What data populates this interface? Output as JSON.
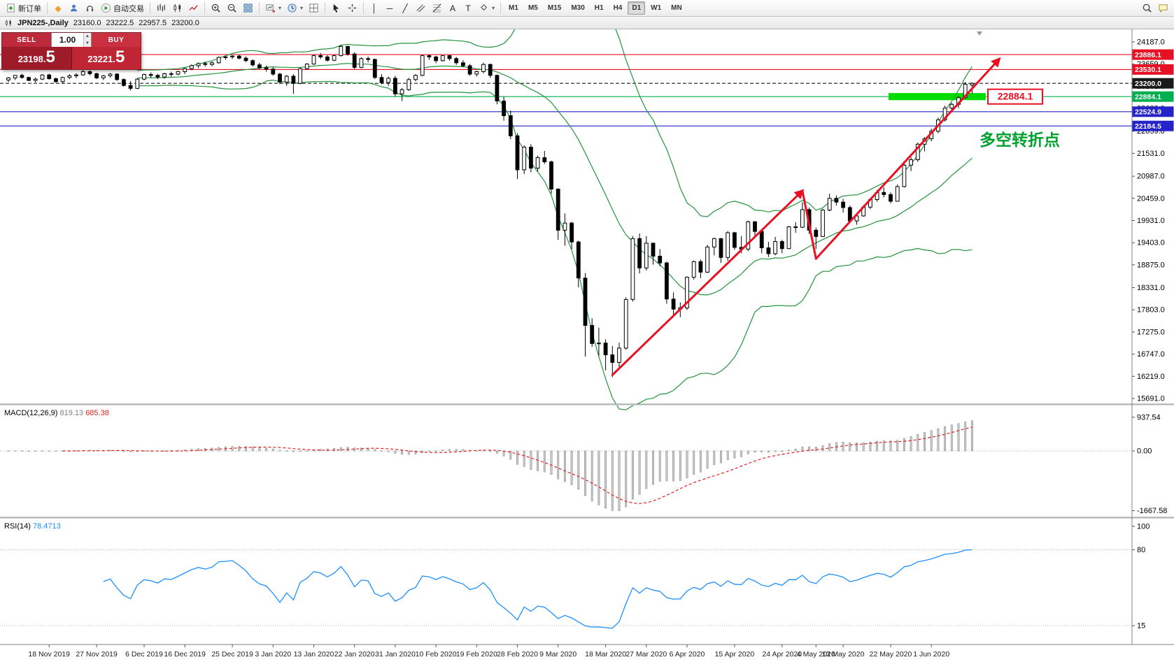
{
  "toolbar": {
    "groups": [
      {
        "name": "orders",
        "items": [
          {
            "name": "new-order-button",
            "icon": "new-order",
            "label": "新订单"
          }
        ]
      },
      {
        "name": "quick",
        "items": [
          {
            "name": "favorites-icon",
            "glyph": "◆",
            "color": "#ef9f2f"
          },
          {
            "name": "profile-button",
            "icon": "person"
          },
          {
            "name": "support-button",
            "icon": "headset"
          },
          {
            "name": "autotrading-button",
            "icon": "autotrade",
            "label": "自动交易"
          }
        ]
      },
      {
        "name": "chart-types",
        "items": [
          {
            "name": "bar-chart-button",
            "icon": "bars-chart"
          },
          {
            "name": "candle-chart-button",
            "icon": "candles-chart"
          },
          {
            "name": "line-chart-button",
            "icon": "line-chart"
          }
        ]
      },
      {
        "name": "zoom",
        "items": [
          {
            "name": "zoom-in-button",
            "icon": "zoom-in"
          },
          {
            "name": "zoom-out-button",
            "icon": "zoom-out"
          },
          {
            "name": "tile-windows-button",
            "icon": "tile"
          }
        ]
      },
      {
        "name": "chart-tools",
        "items": [
          {
            "name": "new-chart-button",
            "icon": "new-chart",
            "dropdown": true
          },
          {
            "name": "period-button",
            "icon": "clock",
            "dropdown": true
          },
          {
            "name": "profiles-button",
            "icon": "grid2"
          }
        ]
      },
      {
        "name": "pointer",
        "items": [
          {
            "name": "cursor-button",
            "icon": "cursor"
          },
          {
            "name": "crosshair-button",
            "icon": "crosshair"
          }
        ]
      },
      {
        "name": "draw-tools",
        "items": [
          {
            "name": "vertical-line-button",
            "glyph": "│"
          },
          {
            "name": "horizontal-line-button",
            "glyph": "─"
          },
          {
            "name": "trendline-button",
            "glyph": "╱"
          },
          {
            "name": "channel-button",
            "icon": "channel"
          },
          {
            "name": "fibonacci-button",
            "icon": "fibo"
          },
          {
            "name": "text-button",
            "glyph": "A"
          },
          {
            "name": "label-button",
            "glyph": "T"
          },
          {
            "name": "shapes-button",
            "icon": "shapes",
            "dropdown": true
          }
        ]
      }
    ],
    "timeframes": [
      "M1",
      "M5",
      "M15",
      "M30",
      "H1",
      "H4",
      "D1",
      "W1",
      "MN"
    ],
    "active_timeframe": "D1",
    "right_items": [
      {
        "name": "search-button",
        "icon": "search"
      },
      {
        "name": "chat-button",
        "icon": "chat"
      }
    ]
  },
  "title_bar": {
    "symbol_period": "JPN225-,Daily",
    "open": "23160.0",
    "high": "23222.5",
    "low": "22957.5",
    "close": "23200.0"
  },
  "trade_panel": {
    "sell_label": "SELL",
    "buy_label": "BUY",
    "volume": "1.00",
    "sell_price": "23198.5",
    "buy_price": "23221.5"
  },
  "chart_data": {
    "type": "candlestick",
    "symbol": "JPN225-",
    "period": "Daily",
    "y_axis_labels": [
      "24187.0",
      "23659.0",
      "23131.0",
      "22603.0",
      "22059.0",
      "21531.0",
      "20987.0",
      "20459.0",
      "19931.0",
      "19403.0",
      "18875.0",
      "18331.0",
      "17803.0",
      "17275.0",
      "16747.0",
      "16219.0",
      "15691.0"
    ],
    "x_labels": [
      "18 Nov 2019",
      "27 Nov 2019",
      "6 Dec 2019",
      "16 Dec 2019",
      "25 Dec 2019",
      "3 Jan 2020",
      "13 Jan 2020",
      "22 Jan 2020",
      "31 Jan 2020",
      "10 Feb 2020",
      "19 Feb 2020",
      "28 Feb 2020",
      "9 Mar 2020",
      "18 Mar 2020",
      "27 Mar 2020",
      "6 Apr 2020",
      "15 Apr 2020",
      "24 Apr 2020",
      "4 May 2020",
      "13 May 2020",
      "22 May 2020",
      "1 Jun 2020"
    ],
    "x_label_indices": [
      6,
      13,
      20,
      26,
      33,
      39,
      45,
      51,
      57,
      63,
      69,
      75,
      81,
      88,
      94,
      100,
      107,
      114,
      119,
      123,
      130,
      136
    ],
    "ohlc": [
      [
        23280,
        23350,
        23230,
        23330
      ],
      [
        23330,
        23400,
        23280,
        23390
      ],
      [
        23390,
        23430,
        23310,
        23340
      ],
      [
        23340,
        23360,
        23250,
        23270
      ],
      [
        23270,
        23340,
        23220,
        23300
      ],
      [
        23300,
        23420,
        23280,
        23400
      ],
      [
        23400,
        23430,
        23290,
        23310
      ],
      [
        23310,
        23340,
        23210,
        23240
      ],
      [
        23240,
        23360,
        23200,
        23340
      ],
      [
        23340,
        23420,
        23300,
        23380
      ],
      [
        23380,
        23440,
        23320,
        23400
      ],
      [
        23400,
        23520,
        23380,
        23480
      ],
      [
        23480,
        23510,
        23390,
        23430
      ],
      [
        23430,
        23450,
        23300,
        23330
      ],
      [
        23330,
        23400,
        23280,
        23380
      ],
      [
        23380,
        23450,
        23340,
        23420
      ],
      [
        23420,
        23440,
        23260,
        23290
      ],
      [
        23290,
        23320,
        23120,
        23150
      ],
      [
        23150,
        23250,
        23030,
        23080
      ],
      [
        23080,
        23320,
        23060,
        23300
      ],
      [
        23300,
        23430,
        23270,
        23410
      ],
      [
        23410,
        23460,
        23330,
        23390
      ],
      [
        23390,
        23420,
        23300,
        23350
      ],
      [
        23350,
        23450,
        23310,
        23430
      ],
      [
        23430,
        23480,
        23360,
        23420
      ],
      [
        23420,
        23500,
        23390,
        23480
      ],
      [
        23480,
        23570,
        23420,
        23550
      ],
      [
        23550,
        23650,
        23510,
        23620
      ],
      [
        23620,
        23700,
        23560,
        23670
      ],
      [
        23670,
        23720,
        23600,
        23650
      ],
      [
        23650,
        23720,
        23610,
        23690
      ],
      [
        23690,
        23840,
        23670,
        23820
      ],
      [
        23820,
        23860,
        23760,
        23830
      ],
      [
        23830,
        23870,
        23780,
        23850
      ],
      [
        23850,
        23880,
        23770,
        23800
      ],
      [
        23800,
        23840,
        23710,
        23740
      ],
      [
        23740,
        23770,
        23600,
        23640
      ],
      [
        23640,
        23690,
        23540,
        23570
      ],
      [
        23570,
        23620,
        23480,
        23540
      ],
      [
        23540,
        23580,
        23380,
        23420
      ],
      [
        23420,
        23450,
        23180,
        23230
      ],
      [
        23230,
        23400,
        23140,
        23370
      ],
      [
        23370,
        23420,
        22950,
        23200
      ],
      [
        23200,
        23580,
        23180,
        23550
      ],
      [
        23550,
        23680,
        23520,
        23660
      ],
      [
        23660,
        23890,
        23640,
        23860
      ],
      [
        23860,
        23920,
        23780,
        23830
      ],
      [
        23830,
        23870,
        23720,
        23750
      ],
      [
        23750,
        23880,
        23730,
        23860
      ],
      [
        23860,
        24120,
        23840,
        24080
      ],
      [
        24080,
        24100,
        23860,
        23900
      ],
      [
        23900,
        23940,
        23540,
        23580
      ],
      [
        23580,
        23820,
        23560,
        23790
      ],
      [
        23790,
        23840,
        23700,
        23770
      ],
      [
        23770,
        23790,
        23300,
        23340
      ],
      [
        23340,
        23420,
        23180,
        23220
      ],
      [
        23220,
        23360,
        23140,
        23320
      ],
      [
        23320,
        23380,
        22890,
        22950
      ],
      [
        22950,
        23090,
        22780,
        23050
      ],
      [
        23050,
        23330,
        23020,
        23290
      ],
      [
        23290,
        23420,
        23250,
        23390
      ],
      [
        23390,
        23880,
        23370,
        23860
      ],
      [
        23860,
        23890,
        23760,
        23830
      ],
      [
        23830,
        23860,
        23680,
        23740
      ],
      [
        23740,
        23870,
        23720,
        23860
      ],
      [
        23860,
        23880,
        23740,
        23790
      ],
      [
        23790,
        23830,
        23640,
        23690
      ],
      [
        23690,
        23750,
        23580,
        23620
      ],
      [
        23620,
        23660,
        23380,
        23420
      ],
      [
        23420,
        23500,
        23360,
        23480
      ],
      [
        23480,
        23690,
        23440,
        23650
      ],
      [
        23650,
        23670,
        23330,
        23390
      ],
      [
        23390,
        23410,
        22700,
        22780
      ],
      [
        22780,
        22880,
        22310,
        22430
      ],
      [
        22430,
        22550,
        21870,
        21950
      ],
      [
        21950,
        22010,
        20920,
        21140
      ],
      [
        21140,
        21720,
        21040,
        21680
      ],
      [
        21680,
        21750,
        21080,
        21180
      ],
      [
        21180,
        21480,
        21100,
        21430
      ],
      [
        21430,
        21590,
        21280,
        21330
      ],
      [
        21330,
        21360,
        20570,
        20680
      ],
      [
        20680,
        20700,
        19470,
        19700
      ],
      [
        19700,
        20100,
        19330,
        19870
      ],
      [
        19870,
        19900,
        19250,
        19420
      ],
      [
        19420,
        19450,
        18340,
        18560
      ],
      [
        18560,
        18680,
        16690,
        17430
      ],
      [
        17430,
        17600,
        16920,
        17000
      ],
      [
        17000,
        17380,
        16710,
        17010
      ],
      [
        17010,
        17100,
        16360,
        16730
      ],
      [
        16730,
        16940,
        16200,
        16550
      ],
      [
        16550,
        17020,
        16420,
        16890
      ],
      [
        16890,
        18100,
        16850,
        18050
      ],
      [
        18050,
        19560,
        18000,
        19500
      ],
      [
        19500,
        19620,
        18670,
        18800
      ],
      [
        18800,
        19560,
        18740,
        19390
      ],
      [
        19390,
        19400,
        18880,
        19080
      ],
      [
        19080,
        19250,
        18840,
        18920
      ],
      [
        18920,
        18950,
        17950,
        18060
      ],
      [
        18060,
        18220,
        17650,
        17820
      ],
      [
        17820,
        17980,
        17630,
        17850
      ],
      [
        17850,
        18600,
        17800,
        18580
      ],
      [
        18580,
        18980,
        18520,
        18950
      ],
      [
        18950,
        19000,
        18560,
        18700
      ],
      [
        18700,
        19350,
        18680,
        19300
      ],
      [
        19300,
        19520,
        19100,
        19500
      ],
      [
        19500,
        19510,
        18920,
        19050
      ],
      [
        19050,
        19680,
        18970,
        19640
      ],
      [
        19640,
        19660,
        19230,
        19290
      ],
      [
        19290,
        19560,
        19150,
        19250
      ],
      [
        19250,
        19930,
        19200,
        19900
      ],
      [
        19900,
        19920,
        19540,
        19670
      ],
      [
        19670,
        19690,
        19150,
        19280
      ],
      [
        19280,
        19420,
        19060,
        19140
      ],
      [
        19140,
        19540,
        19100,
        19430
      ],
      [
        19430,
        19470,
        19150,
        19260
      ],
      [
        19260,
        19800,
        19250,
        19780
      ],
      [
        19780,
        19890,
        19640,
        19770
      ],
      [
        19770,
        20370,
        19750,
        20190
      ],
      [
        20190,
        20240,
        19610,
        19700
      ],
      [
        19700,
        19760,
        19250,
        19550
      ],
      [
        19550,
        20210,
        19540,
        20180
      ],
      [
        20180,
        20570,
        20150,
        20460
      ],
      [
        20460,
        20530,
        20290,
        20370
      ],
      [
        20370,
        20450,
        20120,
        20240
      ],
      [
        20240,
        20290,
        19900,
        19920
      ],
      [
        19920,
        20100,
        19830,
        20040
      ],
      [
        20040,
        20300,
        20020,
        20250
      ],
      [
        20250,
        20470,
        20200,
        20430
      ],
      [
        20430,
        20660,
        20380,
        20600
      ],
      [
        20600,
        20720,
        20480,
        20550
      ],
      [
        20550,
        20600,
        20340,
        20390
      ],
      [
        20390,
        20790,
        20380,
        20740
      ],
      [
        20740,
        21280,
        20720,
        21250
      ],
      [
        21250,
        21440,
        21110,
        21380
      ],
      [
        21380,
        21790,
        21330,
        21750
      ],
      [
        21750,
        21920,
        21580,
        21880
      ],
      [
        21880,
        22120,
        21820,
        22060
      ],
      [
        22060,
        22390,
        22010,
        22330
      ],
      [
        22330,
        22670,
        22290,
        22610
      ],
      [
        22610,
        22740,
        22510,
        22700
      ],
      [
        22700,
        22900,
        22610,
        22860
      ],
      [
        22860,
        23230,
        22840,
        23180
      ],
      [
        23160,
        23222,
        22958,
        23200
      ]
    ],
    "price_lines": [
      {
        "price": 23886.1,
        "label": "23886.1",
        "color": "#e81123",
        "style": "solid"
      },
      {
        "price": 23530.1,
        "label": "23530.1",
        "color": "#e81123",
        "style": "solid"
      },
      {
        "price": 23200.0,
        "label": "23200.0",
        "color": "#1a1a1a",
        "style": "dashed"
      },
      {
        "price": 22884.1,
        "label": "22884.1",
        "color": "#00b050",
        "style": "solid"
      },
      {
        "price": 22524.9,
        "label": "22524.9",
        "color": "#2424c8",
        "style": "solid"
      },
      {
        "price": 22184.5,
        "label": "22184.5",
        "color": "#2424c8",
        "style": "solid"
      }
    ],
    "zone": {
      "from_index": 130,
      "to_index": 144,
      "price": 22884.1,
      "half_height_points": 85,
      "color": "#00dc00"
    },
    "price_tag": {
      "text": "22884.1",
      "color": "#e81123"
    },
    "trend_arrow": {
      "color": "#e81123",
      "points": [
        [
          89,
          16250
        ],
        [
          117,
          20640
        ],
        [
          119,
          19020
        ],
        [
          146,
          23780
        ]
      ]
    },
    "note": {
      "text": "多空转折点",
      "color": "#00a12e"
    },
    "bollinger": {
      "period": 20,
      "deviation": 2,
      "color": "#24933e"
    },
    "indicators": {
      "macd": {
        "label": "MACD(12,26,9)",
        "fast": 12,
        "slow": 26,
        "signal": 9,
        "value": "819.13",
        "signal_value": "685.38",
        "axis_labels": [
          "937.54",
          "0.00",
          "-1667.58"
        ],
        "histogram_color": "#c9c9c9",
        "signal_color": "#e02020"
      },
      "rsi": {
        "label": "RSI(14)",
        "period": 14,
        "value": "78.4713",
        "axis_labels": [
          "100",
          "80",
          "15"
        ],
        "levels": [
          80,
          15
        ],
        "color": "#1e90ff"
      }
    }
  }
}
